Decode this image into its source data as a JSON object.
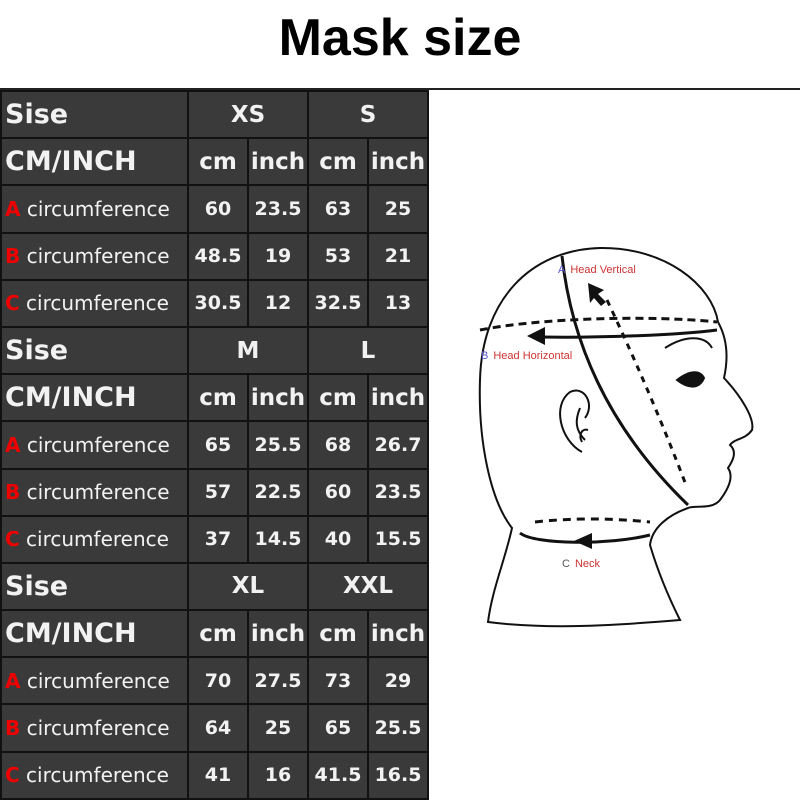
{
  "title": "Mask size",
  "accent_color": "#e00000",
  "blocks": [
    {
      "header": "Sise",
      "sizes": [
        "XS",
        "S"
      ],
      "unit_label": "CM/INCH",
      "units": [
        "cm",
        "inch",
        "cm",
        "inch"
      ],
      "rows": [
        {
          "letter": "A",
          "label": "circumference",
          "values": [
            "60",
            "23.5",
            "63",
            "25"
          ]
        },
        {
          "letter": "B",
          "label": "circumference",
          "values": [
            "48.5",
            "19",
            "53",
            "21"
          ]
        },
        {
          "letter": "C",
          "label": "circumference",
          "values": [
            "30.5",
            "12",
            "32.5",
            "13"
          ]
        }
      ]
    },
    {
      "header": "Sise",
      "sizes": [
        "M",
        "L"
      ],
      "unit_label": "CM/INCH",
      "units": [
        "cm",
        "inch",
        "cm",
        "inch"
      ],
      "rows": [
        {
          "letter": "A",
          "label": "circumference",
          "values": [
            "65",
            "25.5",
            "68",
            "26.7"
          ]
        },
        {
          "letter": "B",
          "label": "circumference",
          "values": [
            "57",
            "22.5",
            "60",
            "23.5"
          ]
        },
        {
          "letter": "C",
          "label": "circumference",
          "values": [
            "37",
            "14.5",
            "40",
            "15.5"
          ]
        }
      ]
    },
    {
      "header": "Sise",
      "sizes": [
        "XL",
        "XXL"
      ],
      "unit_label": "CM/INCH",
      "units": [
        "cm",
        "inch",
        "cm",
        "inch"
      ],
      "rows": [
        {
          "letter": "A",
          "label": "circumference",
          "values": [
            "70",
            "27.5",
            "73",
            "29"
          ]
        },
        {
          "letter": "B",
          "label": "circumference",
          "values": [
            "64",
            "25",
            "65",
            "25.5"
          ]
        },
        {
          "letter": "C",
          "label": "circumference",
          "values": [
            "41",
            "16",
            "41.5",
            "16.5"
          ]
        }
      ]
    }
  ],
  "diagram": {
    "a": {
      "letter": "A",
      "label": "Head Vertical"
    },
    "b": {
      "letter": "B",
      "label": "Head Horizontal"
    },
    "c": {
      "letter": "C",
      "label": "Neck"
    }
  }
}
